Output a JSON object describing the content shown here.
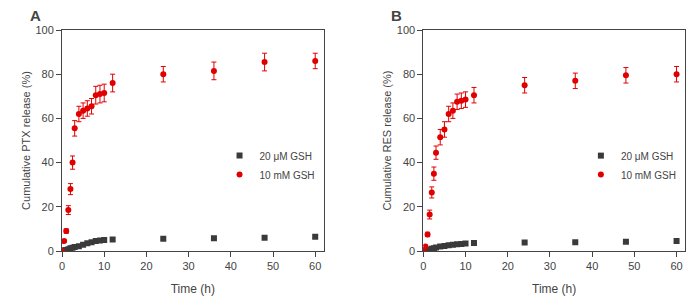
{
  "chart_data": [
    {
      "type": "scatter",
      "title": "A",
      "xlabel": "Time (h)",
      "ylabel": "Cumulative PTX release (%)",
      "x": [
        0,
        0.5,
        1,
        1.5,
        2,
        2.5,
        3,
        4,
        5,
        6,
        7,
        8,
        9,
        10,
        12,
        24,
        36,
        48,
        60
      ],
      "series": [
        {
          "name": "20 μM GSH",
          "color": "#3a3a3a",
          "marker": "square",
          "values": [
            0,
            0.3,
            0.5,
            0.8,
            1.2,
            1.5,
            1.8,
            2.2,
            2.8,
            3.5,
            4.0,
            4.5,
            4.8,
            5.0,
            5.2,
            5.5,
            5.8,
            6.0,
            6.5
          ],
          "error": [
            0,
            0.1,
            0.15,
            0.2,
            0.3,
            0.3,
            0.3,
            0.4,
            0.4,
            0.5,
            0.5,
            0.5,
            0.5,
            0.5,
            0.5,
            0.5,
            0.5,
            0.5,
            0.5
          ]
        },
        {
          "name": "10 mM GSH",
          "color": "#e00000",
          "marker": "circle",
          "values": [
            0,
            4.5,
            9.0,
            18.5,
            28.0,
            40.0,
            55.5,
            62.0,
            63.5,
            64.5,
            65.5,
            70.5,
            71.0,
            71.5,
            76.0,
            80.0,
            81.5,
            85.5,
            86.0
          ],
          "error": [
            0,
            0.5,
            1.0,
            2.0,
            2.5,
            3.0,
            3.5,
            3.5,
            3.5,
            3.5,
            3.5,
            4.0,
            4.0,
            4.0,
            4.0,
            3.5,
            4.0,
            4.0,
            3.5
          ]
        }
      ],
      "xlim": [
        0,
        62
      ],
      "ylim": [
        0,
        100
      ],
      "xticks": [
        0,
        10,
        20,
        30,
        40,
        50,
        60
      ],
      "yticks": [
        0,
        20,
        40,
        60,
        80,
        100
      ],
      "grid": false,
      "legend": "lower right"
    },
    {
      "type": "scatter",
      "title": "B",
      "xlabel": "Time (h)",
      "ylabel": "Cumulative RES release (%)",
      "x": [
        0,
        0.5,
        1,
        1.5,
        2,
        2.5,
        3,
        4,
        5,
        6,
        7,
        8,
        9,
        10,
        12,
        24,
        36,
        48,
        60
      ],
      "series": [
        {
          "name": "20 μM GSH",
          "color": "#3a3a3a",
          "marker": "square",
          "values": [
            0,
            0.2,
            0.4,
            0.6,
            1.0,
            1.3,
            1.6,
            2.0,
            2.3,
            2.6,
            2.8,
            3.0,
            3.2,
            3.4,
            3.6,
            3.8,
            4.0,
            4.2,
            4.5
          ],
          "error": [
            0,
            0.1,
            0.1,
            0.2,
            0.2,
            0.2,
            0.2,
            0.3,
            0.3,
            0.3,
            0.3,
            0.3,
            0.3,
            0.3,
            0.3,
            0.3,
            0.3,
            0.3,
            0.3
          ]
        },
        {
          "name": "10 mM GSH",
          "color": "#e00000",
          "marker": "circle",
          "values": [
            0,
            2.0,
            7.5,
            16.5,
            26.5,
            35.0,
            44.5,
            51.5,
            55.0,
            62.0,
            63.5,
            67.5,
            68.0,
            68.5,
            70.5,
            75.0,
            77.0,
            79.5,
            80.0
          ],
          "error": [
            0,
            0.5,
            1.0,
            2.0,
            2.5,
            3.0,
            3.0,
            3.5,
            3.5,
            3.5,
            3.5,
            3.5,
            3.5,
            3.5,
            3.5,
            3.5,
            3.5,
            3.5,
            3.5
          ]
        }
      ],
      "xlim": [
        0,
        62
      ],
      "ylim": [
        0,
        100
      ],
      "xticks": [
        0,
        10,
        20,
        30,
        40,
        50,
        60
      ],
      "yticks": [
        0,
        20,
        40,
        60,
        80,
        100
      ],
      "grid": false,
      "legend": "lower right"
    }
  ]
}
